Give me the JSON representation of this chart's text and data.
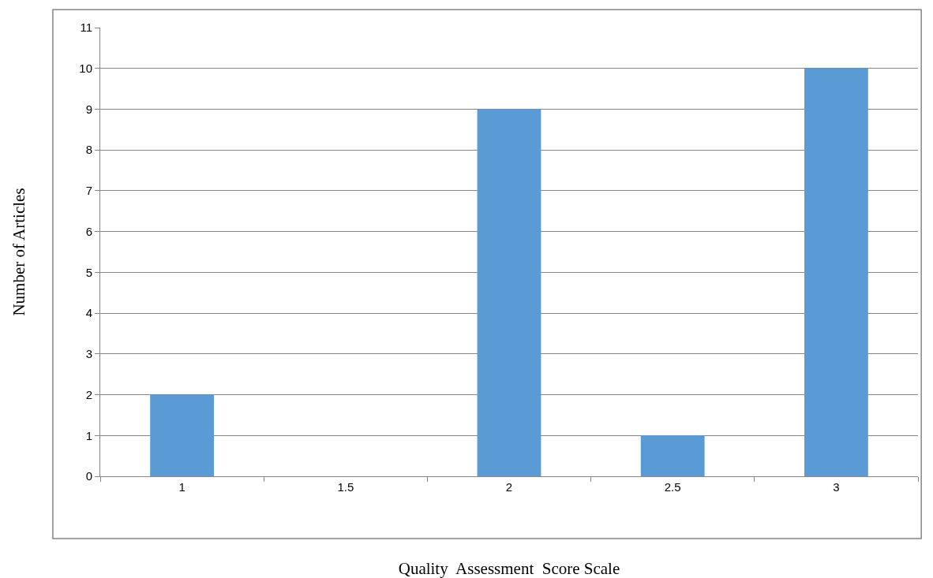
{
  "chart_data": {
    "type": "bar",
    "xlabel": "Quality  Assessment  Score Scale",
    "ylabel": "Number of Articles",
    "categories": [
      "1",
      "1.5",
      "2",
      "2.5",
      "3"
    ],
    "values": [
      2,
      0,
      9,
      1,
      10
    ],
    "color": "#5b9bd5",
    "ylim": [
      0,
      11
    ],
    "yticks": [
      0,
      1,
      2,
      3,
      4,
      5,
      6,
      7,
      8,
      9,
      10,
      11
    ],
    "grid": "y"
  }
}
